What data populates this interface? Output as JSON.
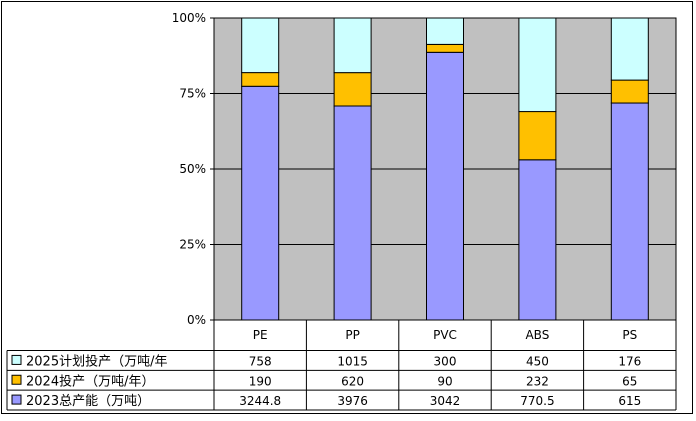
{
  "chart_data": {
    "type": "bar",
    "stacking": "percent",
    "categories": [
      "PE",
      "PP",
      "PVC",
      "ABS",
      "PS"
    ],
    "y_ticks": [
      "0%",
      "25%",
      "50%",
      "75%",
      "100%"
    ],
    "ylim": [
      0,
      100
    ],
    "grid": true,
    "legend": "left-in-data-table",
    "series": [
      {
        "name": "2023总产能（万吨）",
        "color": "#9999ff",
        "labels": [
          "3244.8",
          "3976",
          "3042",
          "770.5",
          "615"
        ],
        "values": [
          3244.8,
          3976,
          3042,
          770.5,
          615
        ]
      },
      {
        "name": "2024投产（万吨/年）",
        "color": "#ffc000",
        "labels": [
          "190",
          "620",
          "90",
          "232",
          "65"
        ],
        "values": [
          190,
          620,
          90,
          232,
          65
        ]
      },
      {
        "name": "2025计划投产（万吨/年",
        "color": "#ccffff",
        "labels": [
          "758",
          "1015",
          "300",
          "450",
          "176"
        ],
        "values": [
          758,
          1015,
          300,
          450,
          176
        ]
      }
    ],
    "colors": {
      "plot_bg": "#c0c0c0",
      "frame": "#000000",
      "grid": "#000000"
    }
  }
}
